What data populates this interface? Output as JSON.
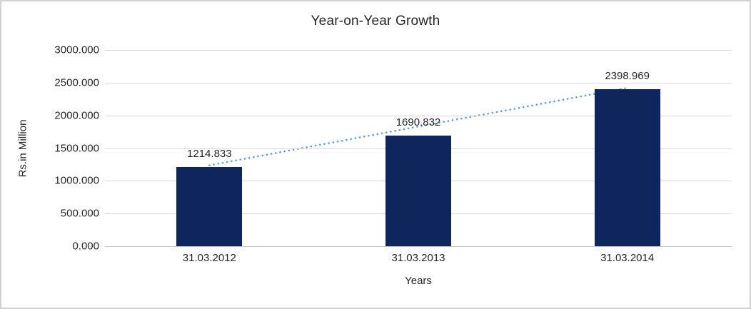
{
  "window": {
    "background_color": "#ffffff",
    "border_color": "#d1d1d1"
  },
  "chart_data": {
    "type": "bar",
    "title": "Year-on-Year Growth",
    "xlabel": "Years",
    "ylabel": "Rs.in Million",
    "categories": [
      "31.03.2012",
      "31.03.2013",
      "31.03.2014"
    ],
    "values": [
      1214.833,
      1690.832,
      2398.969
    ],
    "data_labels": [
      "1214.833",
      "1690.832",
      "2398.969"
    ],
    "y_ticks": [
      "0.000",
      "500.000",
      "1000.000",
      "1500.000",
      "2000.000",
      "2500.000",
      "3000.000"
    ],
    "ylim": [
      0,
      3000
    ],
    "y_tick_step": 500,
    "grid": true,
    "legend_position": "none",
    "bar_color": "#0f265c",
    "gridline_color": "#d9d9d9",
    "axis_line_color": "#c6c6c6",
    "text_color": "#262626",
    "trendline": {
      "type": "linear",
      "style": "dotted",
      "color": "#5b9bd5",
      "from_value": 1214.833,
      "to_value": 2398.969
    }
  }
}
